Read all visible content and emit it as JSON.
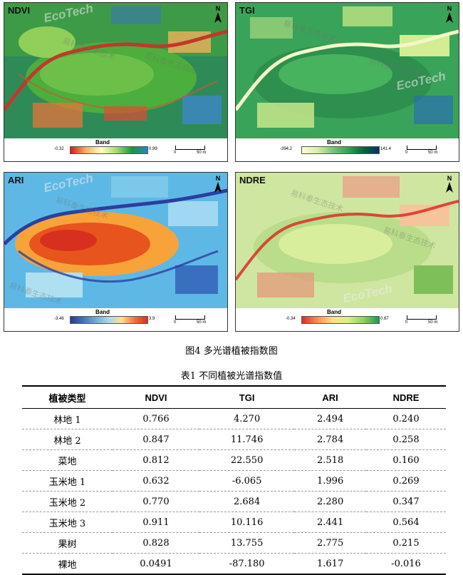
{
  "panels": [
    {
      "title": "NDVI",
      "legend_title": "Band",
      "min": "-0.32",
      "max": "0.99",
      "scale_start": "0",
      "scale_end": "50 m"
    },
    {
      "title": "TGI",
      "legend_title": "Band",
      "min": "-394.2",
      "max": "141.4",
      "scale_start": "0",
      "scale_end": "50 m"
    },
    {
      "title": "ARI",
      "legend_title": "Band",
      "min": "-3.46",
      "max": "3.9",
      "scale_start": "0",
      "scale_end": "50 m"
    },
    {
      "title": "NDRE",
      "legend_title": "Band",
      "min": "-0.34",
      "max": "0.87",
      "scale_start": "0",
      "scale_end": "50 m"
    }
  ],
  "north_label": "N",
  "watermark_text": "易科泰生态技术",
  "watermark_logo": "EcoTech",
  "colormaps": {
    "ndvi": [
      "#d7191c",
      "#fdae61",
      "#ffffbf",
      "#a6d96a",
      "#1a9641",
      "#2b83ba"
    ],
    "tgi": [
      "#ffffcc",
      "#d9f0a3",
      "#78c679",
      "#31a354",
      "#006837",
      "#08306b"
    ],
    "ari": [
      "#313695",
      "#4575b4",
      "#74add1",
      "#abd9e9",
      "#fee090",
      "#f46d43",
      "#d73027"
    ],
    "ndre": [
      "#d73027",
      "#fc8d59",
      "#fee08b",
      "#d9ef8b",
      "#91cf60",
      "#1a9850"
    ]
  },
  "figure_caption": "图4 多光谱植被指数图",
  "table_caption": "表1 不同植被光谱指数值",
  "table": {
    "headers": [
      "植被类型",
      "NDVI",
      "TGI",
      "ARI",
      "NDRE"
    ],
    "rows": [
      [
        "林地 1",
        "0.766",
        "4.270",
        "2.494",
        "0.240"
      ],
      [
        "林地 2",
        "0.847",
        "11.746",
        "2.784",
        "0.258"
      ],
      [
        "菜地",
        "0.812",
        "22.550",
        "2.518",
        "0.160"
      ],
      [
        "玉米地 1",
        "0.632",
        "-6.065",
        "1.996",
        "0.269"
      ],
      [
        "玉米地 2",
        "0.770",
        "2.684",
        "2.280",
        "0.347"
      ],
      [
        "玉米地 3",
        "0.911",
        "10.116",
        "2.441",
        "0.564"
      ],
      [
        "果树",
        "0.828",
        "13.755",
        "2.775",
        "0.215"
      ],
      [
        "裸地",
        "0.0491",
        "-87.180",
        "1.617",
        "-0.016"
      ]
    ]
  }
}
